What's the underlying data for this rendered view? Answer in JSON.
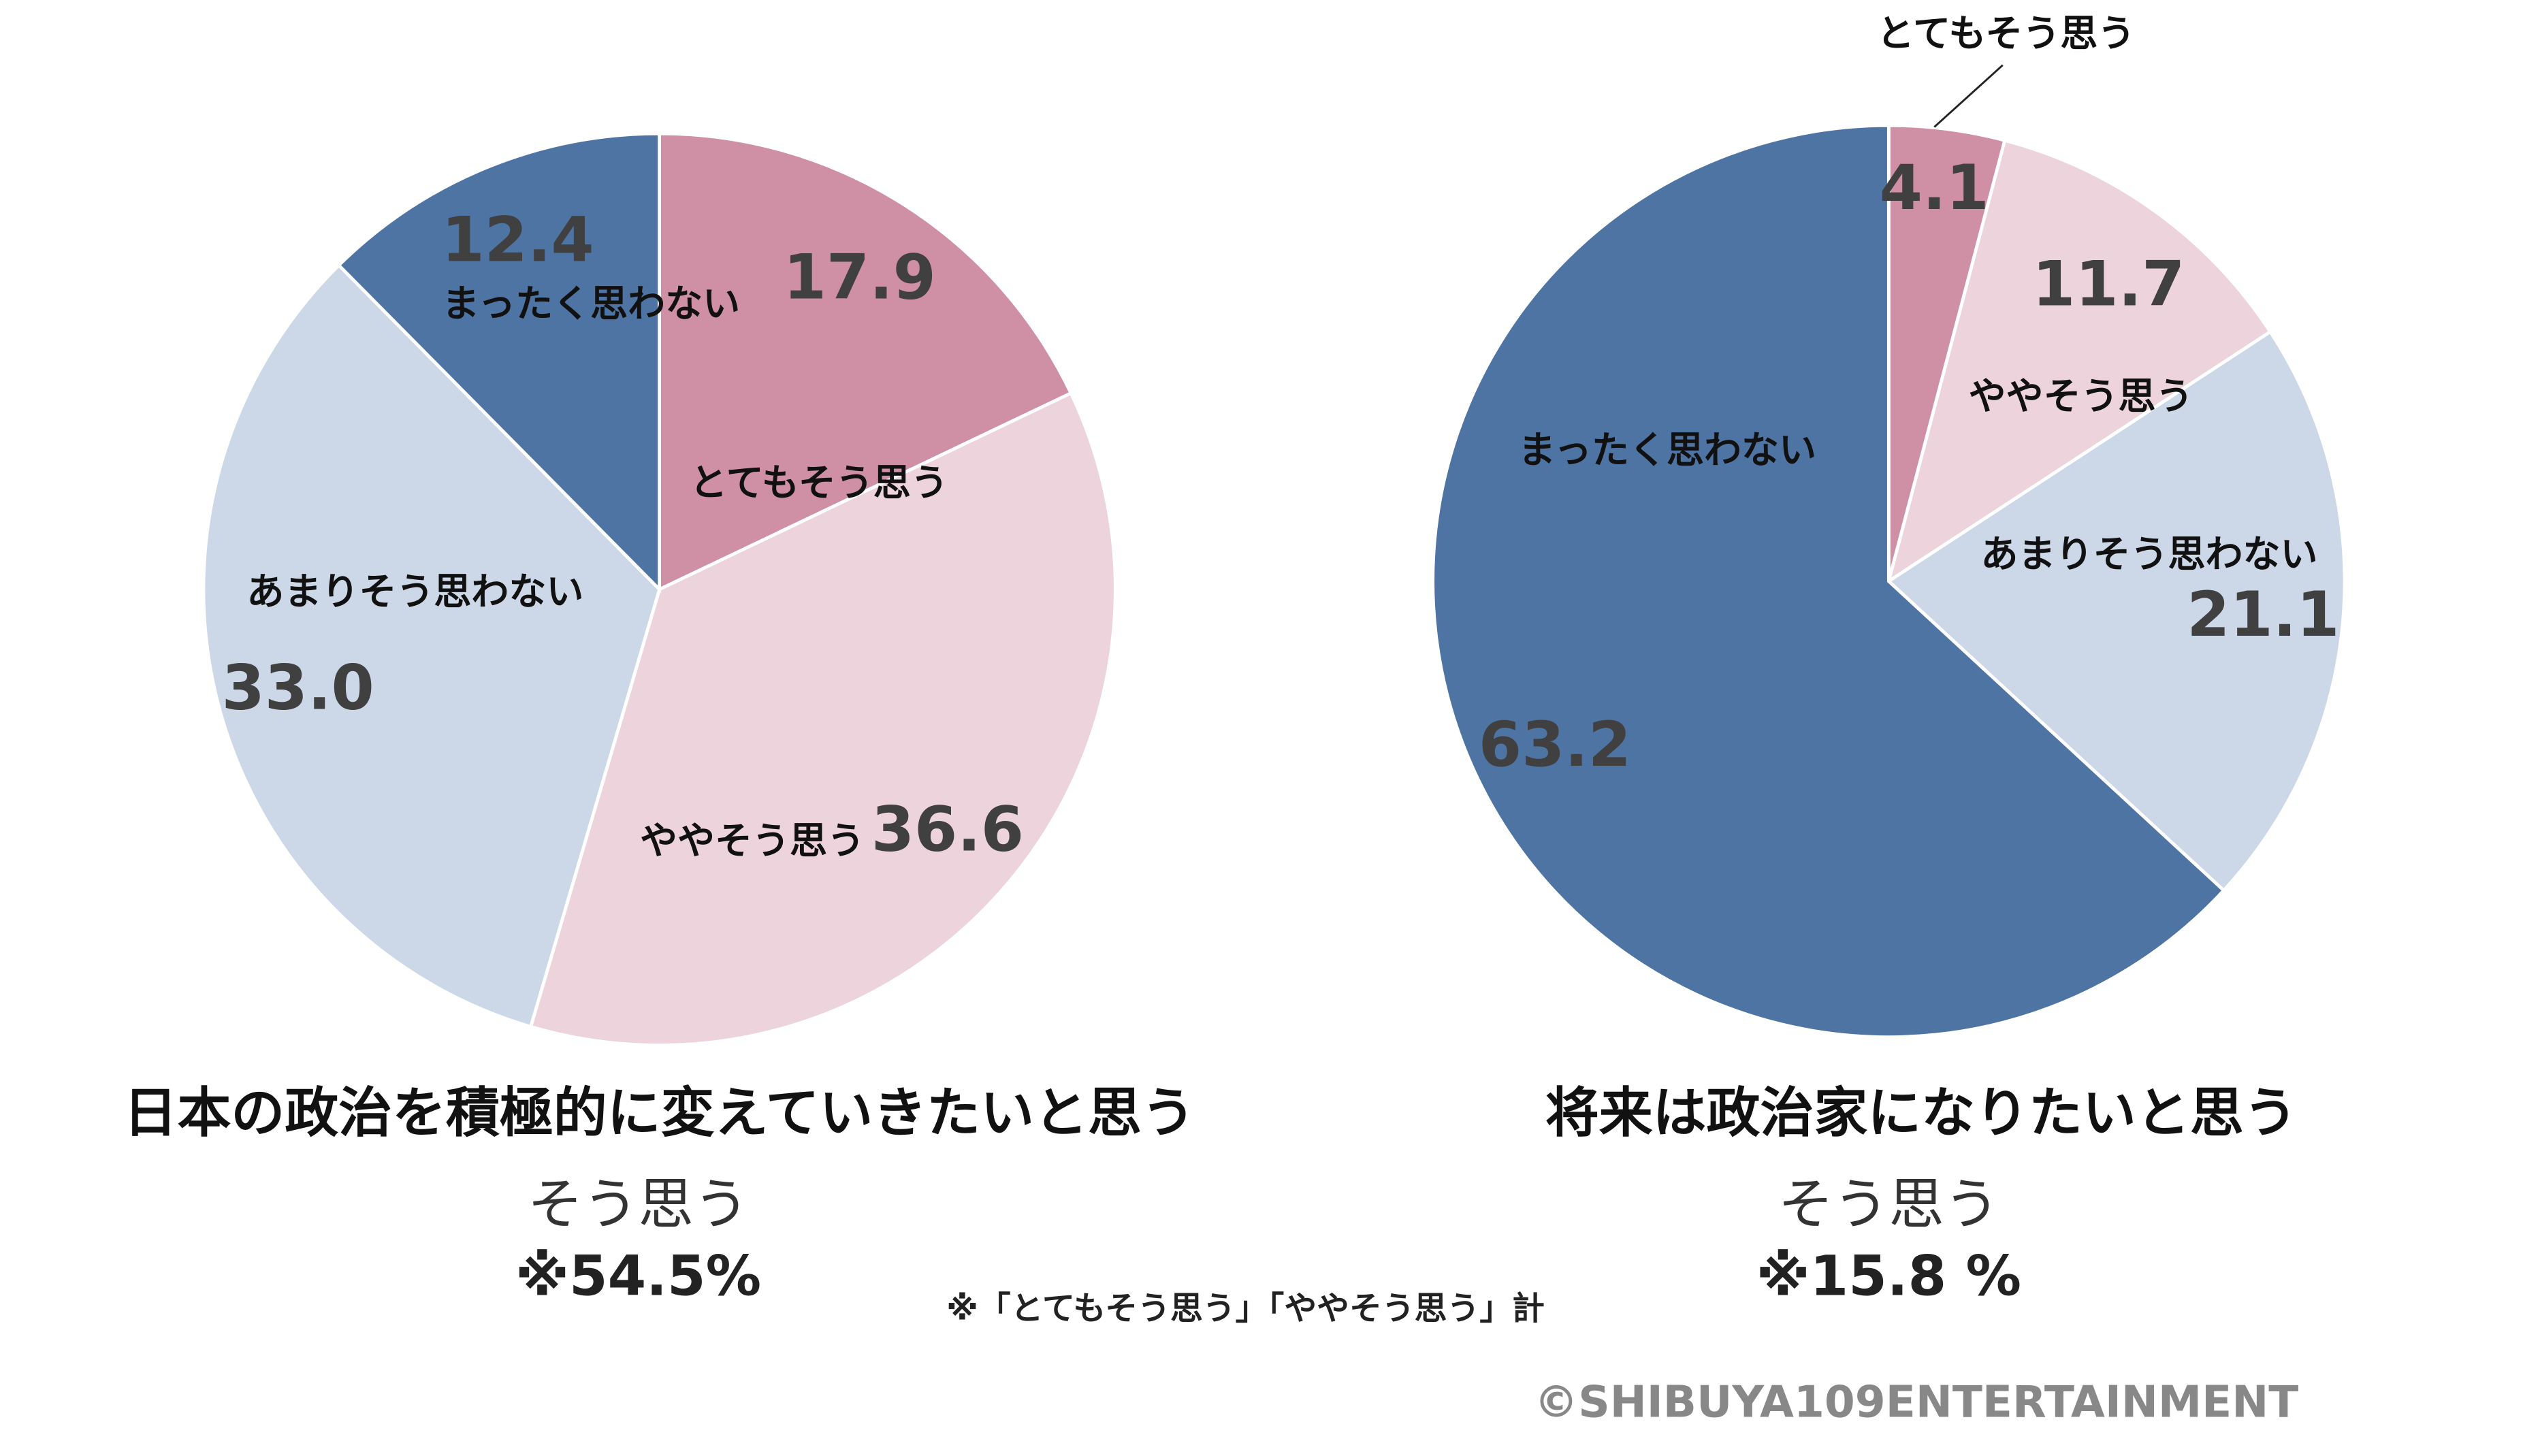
{
  "chart_data": [
    {
      "type": "pie",
      "title": "日本の政治を積極的に変えていきたいと思う",
      "summary_label": "そう思う",
      "summary_value": "※54.5%",
      "categories": [
        "とてもそう思う",
        "ややそう思う",
        "あまりそう思わない",
        "まったく思わない"
      ],
      "values": [
        17.9,
        36.6,
        33.0,
        12.4
      ],
      "value_labels": [
        "17.9",
        "36.6",
        "33.0",
        "12.4"
      ],
      "colors": [
        "#cf8fa5",
        "#edd3dc",
        "#ccd8e7",
        "#4e74a3"
      ]
    },
    {
      "type": "pie",
      "title": "将来は政治家になりたいと思う",
      "summary_label": "そう思う",
      "summary_value": "※15.8 %",
      "categories": [
        "とてもそう思う",
        "ややそう思う",
        "あまりそう思わない",
        "まったく思わない"
      ],
      "values": [
        4.1,
        11.7,
        21.1,
        63.2
      ],
      "value_labels": [
        "4.1",
        "11.7",
        "21.1",
        "63.2"
      ],
      "colors": [
        "#cf8fa5",
        "#edd3dc",
        "#ccd8e7",
        "#4e74a3"
      ]
    }
  ],
  "footnote": "※「とてもそう思う」「ややそう思う」計",
  "copyright": "©SHIBUYA109ENTERTAINMENT"
}
